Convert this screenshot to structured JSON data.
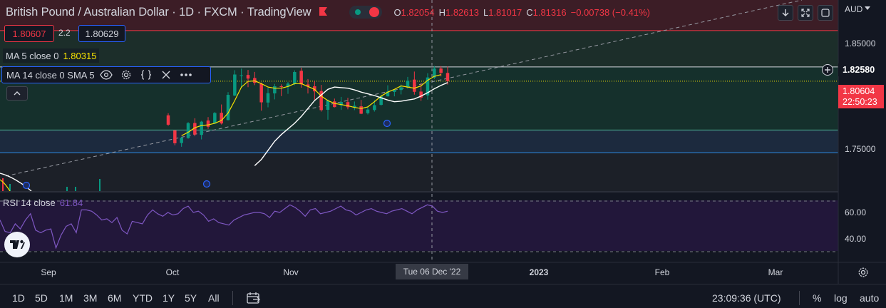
{
  "header": {
    "title": "British Pound / Australian Dollar · 1D · FXCM · TradingView",
    "ohlc": {
      "o_label": "O",
      "o": "1.82054",
      "h_label": "H",
      "h": "1.82613",
      "l_label": "L",
      "l": "1.81017",
      "c_label": "C",
      "c": "1.81316",
      "change": "−0.00738 (−0.41%)"
    },
    "currency": "AUD",
    "icons": [
      "flag-icon",
      "connection-status",
      "down-arrow-icon",
      "fullscreen-icon",
      "screenshot-icon"
    ]
  },
  "trade": {
    "bid": "1.80607",
    "spread": "2.2",
    "ask": "1.80629"
  },
  "legends": {
    "ma5": {
      "label": "MA 5 close 0",
      "value": "1.80315"
    },
    "ma14": {
      "label": "MA 14 close 0 SMA 5"
    },
    "rsi": {
      "label": "RSI 14 close",
      "value": "61.84"
    }
  },
  "price_axis": {
    "ticks": [
      "1.85000",
      "1.75000"
    ],
    "alert_level": "1.82580",
    "last_price": "1.80604",
    "countdown": "22:50:23"
  },
  "rsi_axis": {
    "ticks": [
      "60.00",
      "40.00"
    ]
  },
  "time_axis": {
    "labels": [
      "Sep",
      "Oct",
      "Nov",
      "2023",
      "Feb",
      "Mar"
    ],
    "crosshair_date": "Tue 06 Dec '22"
  },
  "bottom_bar": {
    "ranges": [
      "1D",
      "5D",
      "1M",
      "3M",
      "6M",
      "YTD",
      "1Y",
      "5Y",
      "All"
    ],
    "clock": "23:09:36 (UTC)",
    "percent": "%",
    "log": "log",
    "auto": "auto"
  },
  "colors": {
    "background": "#131722",
    "up": "#089981",
    "down": "#f23645",
    "ma5": "#f7e300",
    "ma14": "#ffffff",
    "rsi": "#7e57c2",
    "accent": "#2962ff"
  },
  "chart_data": {
    "type": "candlestick",
    "symbol": "GBPAUD",
    "price_range": [
      1.716,
      1.885
    ],
    "candles_ohlc": [
      [
        1.783,
        1.7848,
        1.7737,
        1.7747
      ],
      [
        1.7696,
        1.7702,
        1.7565,
        1.7583
      ],
      [
        1.7585,
        1.764,
        1.7552,
        1.7632
      ],
      [
        1.7629,
        1.777,
        1.7623,
        1.7761
      ],
      [
        1.7762,
        1.7804,
        1.7645,
        1.766
      ],
      [
        1.7657,
        1.7781,
        1.7617,
        1.7774
      ],
      [
        1.7784,
        1.7814,
        1.771,
        1.7729
      ],
      [
        1.7757,
        1.7859,
        1.7755,
        1.7851
      ],
      [
        1.7852,
        1.7926,
        1.7749,
        1.7758
      ],
      [
        1.7788,
        1.8035,
        1.7784,
        1.8011
      ],
      [
        1.8005,
        1.8229,
        1.8,
        1.8191
      ],
      [
        1.8181,
        1.8243,
        1.8073,
        1.8184
      ],
      [
        1.8187,
        1.8231,
        1.8079,
        1.8155
      ],
      [
        1.816,
        1.8214,
        1.8097,
        1.8117
      ],
      [
        1.8109,
        1.8119,
        1.7871,
        1.7945
      ],
      [
        1.7943,
        1.8074,
        1.7901,
        1.8026
      ],
      [
        1.8024,
        1.8108,
        1.7971,
        1.8087
      ],
      [
        1.8087,
        1.8104,
        1.8,
        1.8083
      ],
      [
        1.8082,
        1.8124,
        1.802,
        1.8111
      ],
      [
        1.8107,
        1.8228,
        1.8097,
        1.8213
      ],
      [
        1.8224,
        1.8251,
        1.8074,
        1.8104
      ],
      [
        1.8103,
        1.8151,
        1.8023,
        1.8084
      ],
      [
        1.8087,
        1.8132,
        1.7965,
        1.8042
      ],
      [
        1.8045,
        1.8099,
        1.7863,
        1.7876
      ],
      [
        1.7879,
        1.797,
        1.7791,
        1.796
      ],
      [
        1.7953,
        1.7978,
        1.79,
        1.7903
      ],
      [
        1.7918,
        1.7993,
        1.7878,
        1.7948
      ],
      [
        1.7947,
        1.7985,
        1.7883,
        1.7902
      ],
      [
        1.7901,
        1.7952,
        1.7876,
        1.7915
      ],
      [
        1.791,
        1.7966,
        1.784,
        1.7844
      ],
      [
        1.7849,
        1.7911,
        1.7838,
        1.7881
      ],
      [
        1.7877,
        1.7964,
        1.7863,
        1.792
      ],
      [
        1.7923,
        1.801,
        1.7915,
        1.7997
      ],
      [
        1.7998,
        1.8096,
        1.7996,
        1.804
      ],
      [
        1.8037,
        1.8057,
        1.7998,
        1.8055
      ],
      [
        1.8054,
        1.8102,
        1.8015,
        1.8078
      ],
      [
        1.8078,
        1.817,
        1.8066,
        1.8136
      ],
      [
        1.8146,
        1.8217,
        1.8013,
        1.8038
      ],
      [
        1.804,
        1.8115,
        1.7958,
        1.7987
      ],
      [
        1.8006,
        1.8202,
        1.7969,
        1.8165
      ],
      [
        1.8164,
        1.8266,
        1.8151,
        1.8244
      ],
      [
        1.8244,
        1.8265,
        1.8174,
        1.8205
      ],
      [
        1.8205,
        1.8261,
        1.8102,
        1.8132
      ]
    ],
    "ma5": [
      1.765,
      1.768,
      1.772,
      1.774,
      1.7745,
      1.776,
      1.7785,
      1.785,
      1.796,
      1.808,
      1.813,
      1.8135,
      1.811,
      1.808,
      1.807,
      1.807,
      1.8085,
      1.811,
      1.811,
      1.8085,
      1.806,
      1.8,
      1.796,
      1.7935,
      1.7925,
      1.7915,
      1.79,
      1.789,
      1.7905,
      1.795,
      1.8,
      1.8035,
      1.806,
      1.809,
      1.808,
      1.807,
      1.809,
      1.814,
      1.8175,
      1.819
    ],
    "ma14": [
      1.7385,
      1.744,
      1.752,
      1.76,
      1.766,
      1.771,
      1.776,
      1.782,
      1.789,
      1.796,
      1.801,
      1.806,
      1.808,
      1.8075,
      1.807,
      1.8055,
      1.8035,
      1.802,
      1.8005,
      1.7985,
      1.7965,
      1.795,
      1.7955,
      1.7965,
      1.7975,
      1.8,
      1.803,
      1.8065,
      1.8095,
      1.812
    ],
    "rsi": [
      55,
      46,
      45,
      52,
      48,
      55,
      60,
      47,
      45,
      47,
      48,
      33,
      43,
      50,
      52,
      45,
      63,
      63,
      62,
      59,
      55,
      56,
      53,
      57,
      47,
      44,
      54,
      53,
      52,
      59,
      63,
      60,
      58,
      61,
      59,
      60,
      64,
      66,
      61,
      62,
      59,
      54,
      56,
      53,
      52,
      51,
      55,
      57,
      59,
      60,
      61,
      61,
      60,
      57,
      62,
      61,
      64,
      67,
      65,
      62,
      58,
      63,
      64,
      60,
      61,
      62,
      64,
      66,
      63,
      62,
      59,
      61,
      63,
      64,
      62,
      61,
      60,
      62,
      63,
      64,
      62,
      60,
      63,
      65,
      67,
      66,
      62,
      61,
      62
    ],
    "rsi_levels": [
      70,
      30
    ],
    "levels": {
      "resistance": 1.858,
      "alert": 1.8258,
      "support": 1.77,
      "support2": 1.75
    }
  }
}
